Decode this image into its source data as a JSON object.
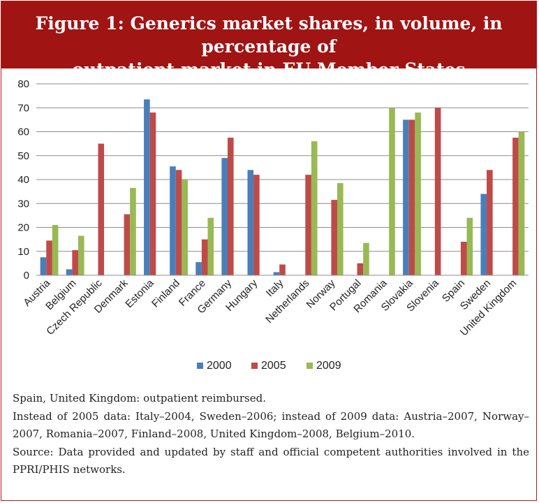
{
  "header": {
    "title_line1": "Figure 1: Generics market shares, in volume, in percentage of",
    "title_line2": "outpatient market in EU Member States"
  },
  "notes": [
    "Spain, United Kingdom: outpatient reimbursed.",
    "Instead of 2005 data: Italy–2004, Sweden–2006; instead of 2009 data: Austria–2007, Norway–2007, Romania–2007, Finland–2008, United Kingdom–2008, Belgium–2010.",
    "Source: Data provided and updated by staff and official competent authorities involved in the PPRI/PHIS networks."
  ],
  "colors": {
    "header_bg": "#a01414",
    "series_2000": "#4a7ebb",
    "series_2005": "#be4b48",
    "series_2009": "#98b954"
  },
  "chart_data": {
    "type": "bar",
    "categories": [
      "Austria",
      "Belgium",
      "Czech Republic",
      "Denmark",
      "Estonia",
      "Finland",
      "France",
      "Germany",
      "Hungary",
      "Italy",
      "Netherlands",
      "Norway",
      "Portugal",
      "Romania",
      "Slovakia",
      "Slovenia",
      "Spain",
      "Sweden",
      "United Kingdom"
    ],
    "series": [
      {
        "name": "2000",
        "color": "#4a7ebb",
        "values": [
          7.5,
          2.5,
          null,
          null,
          73.5,
          45.5,
          5.5,
          49,
          44,
          1.3,
          null,
          null,
          null,
          null,
          65,
          null,
          null,
          34,
          null
        ]
      },
      {
        "name": "2005",
        "color": "#be4b48",
        "values": [
          14.5,
          10.5,
          55,
          25.5,
          68,
          44,
          15,
          57.5,
          42,
          4.5,
          42,
          31.5,
          5,
          null,
          65,
          70,
          14,
          44,
          57.5
        ]
      },
      {
        "name": "2009",
        "color": "#98b954",
        "values": [
          21,
          16.5,
          null,
          36.5,
          null,
          40,
          24,
          null,
          null,
          null,
          56,
          38.5,
          13.5,
          70,
          68,
          null,
          24,
          null,
          60
        ]
      }
    ],
    "ylim": [
      0,
      80
    ],
    "yticks": [
      0,
      10,
      20,
      30,
      40,
      50,
      60,
      70,
      80
    ],
    "grid": true,
    "legend": "bottom",
    "title": "",
    "xlabel": "",
    "ylabel": ""
  }
}
